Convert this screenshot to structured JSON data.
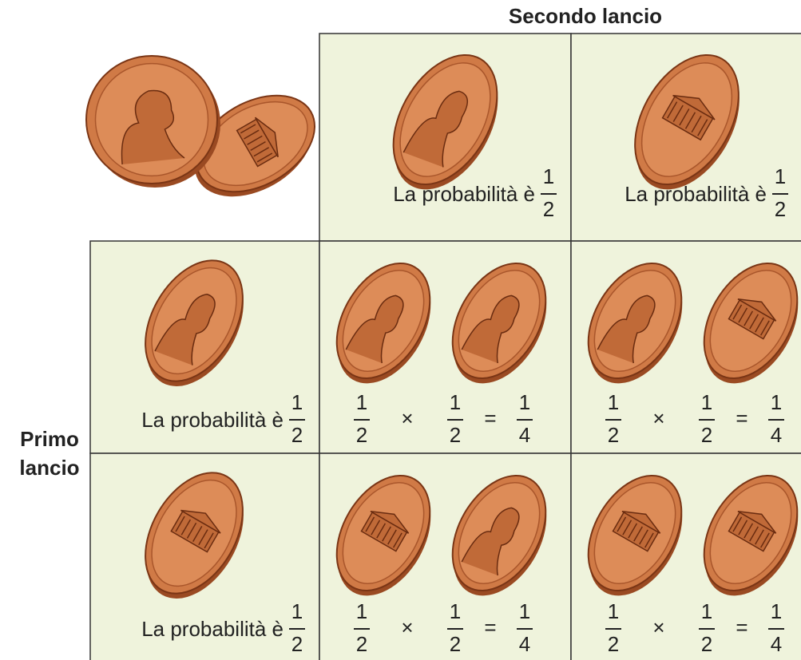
{
  "header": {
    "title": "Secondo lancio"
  },
  "side": {
    "lines": [
      "Primo",
      "lancio"
    ]
  },
  "columns": [
    {
      "label": "La probabilità è",
      "fraction": {
        "numerator": 1,
        "denominator": 2
      }
    },
    {
      "label": "La probabilità è",
      "fraction": {
        "numerator": 1,
        "denominator": 2
      }
    }
  ],
  "rows": [
    {
      "label": "La probabilità è",
      "fraction": {
        "numerator": 1,
        "denominator": 2
      },
      "cells": [
        {
          "left": {
            "numerator": 1,
            "denominator": 2
          },
          "times": "×",
          "right": {
            "numerator": 1,
            "denominator": 2
          },
          "equals": "=",
          "result": {
            "numerator": 1,
            "denominator": 4
          }
        },
        {
          "left": {
            "numerator": 1,
            "denominator": 2
          },
          "times": "×",
          "right": {
            "numerator": 1,
            "denominator": 2
          },
          "equals": "=",
          "result": {
            "numerator": 1,
            "denominator": 4
          }
        }
      ]
    },
    {
      "label": "La probabilità è",
      "fraction": {
        "numerator": 1,
        "denominator": 2
      },
      "cells": [
        {
          "left": {
            "numerator": 1,
            "denominator": 2
          },
          "times": "×",
          "right": {
            "numerator": 1,
            "denominator": 2
          },
          "equals": "=",
          "result": {
            "numerator": 1,
            "denominator": 4
          }
        },
        {
          "left": {
            "numerator": 1,
            "denominator": 2
          },
          "times": "×",
          "right": {
            "numerator": 1,
            "denominator": 2
          },
          "equals": "=",
          "result": {
            "numerator": 1,
            "denominator": 4
          }
        }
      ]
    }
  ]
}
